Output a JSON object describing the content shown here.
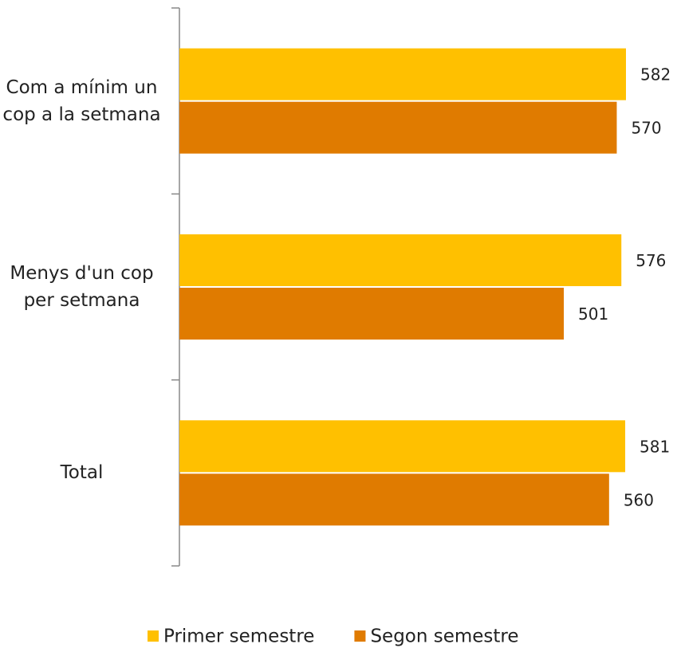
{
  "chart_data": {
    "type": "bar",
    "orientation": "horizontal",
    "categories": [
      "Com a mínim un cop a la setmana",
      "Menys d'un cop per setmana",
      "Total"
    ],
    "series": [
      {
        "name": "Primer semestre",
        "color": "#ffc000",
        "values": [
          582,
          576,
          581
        ]
      },
      {
        "name": "Segon semestre",
        "color": "#e07b00",
        "values": [
          570,
          501,
          560
        ]
      }
    ],
    "legend": "bottom"
  }
}
